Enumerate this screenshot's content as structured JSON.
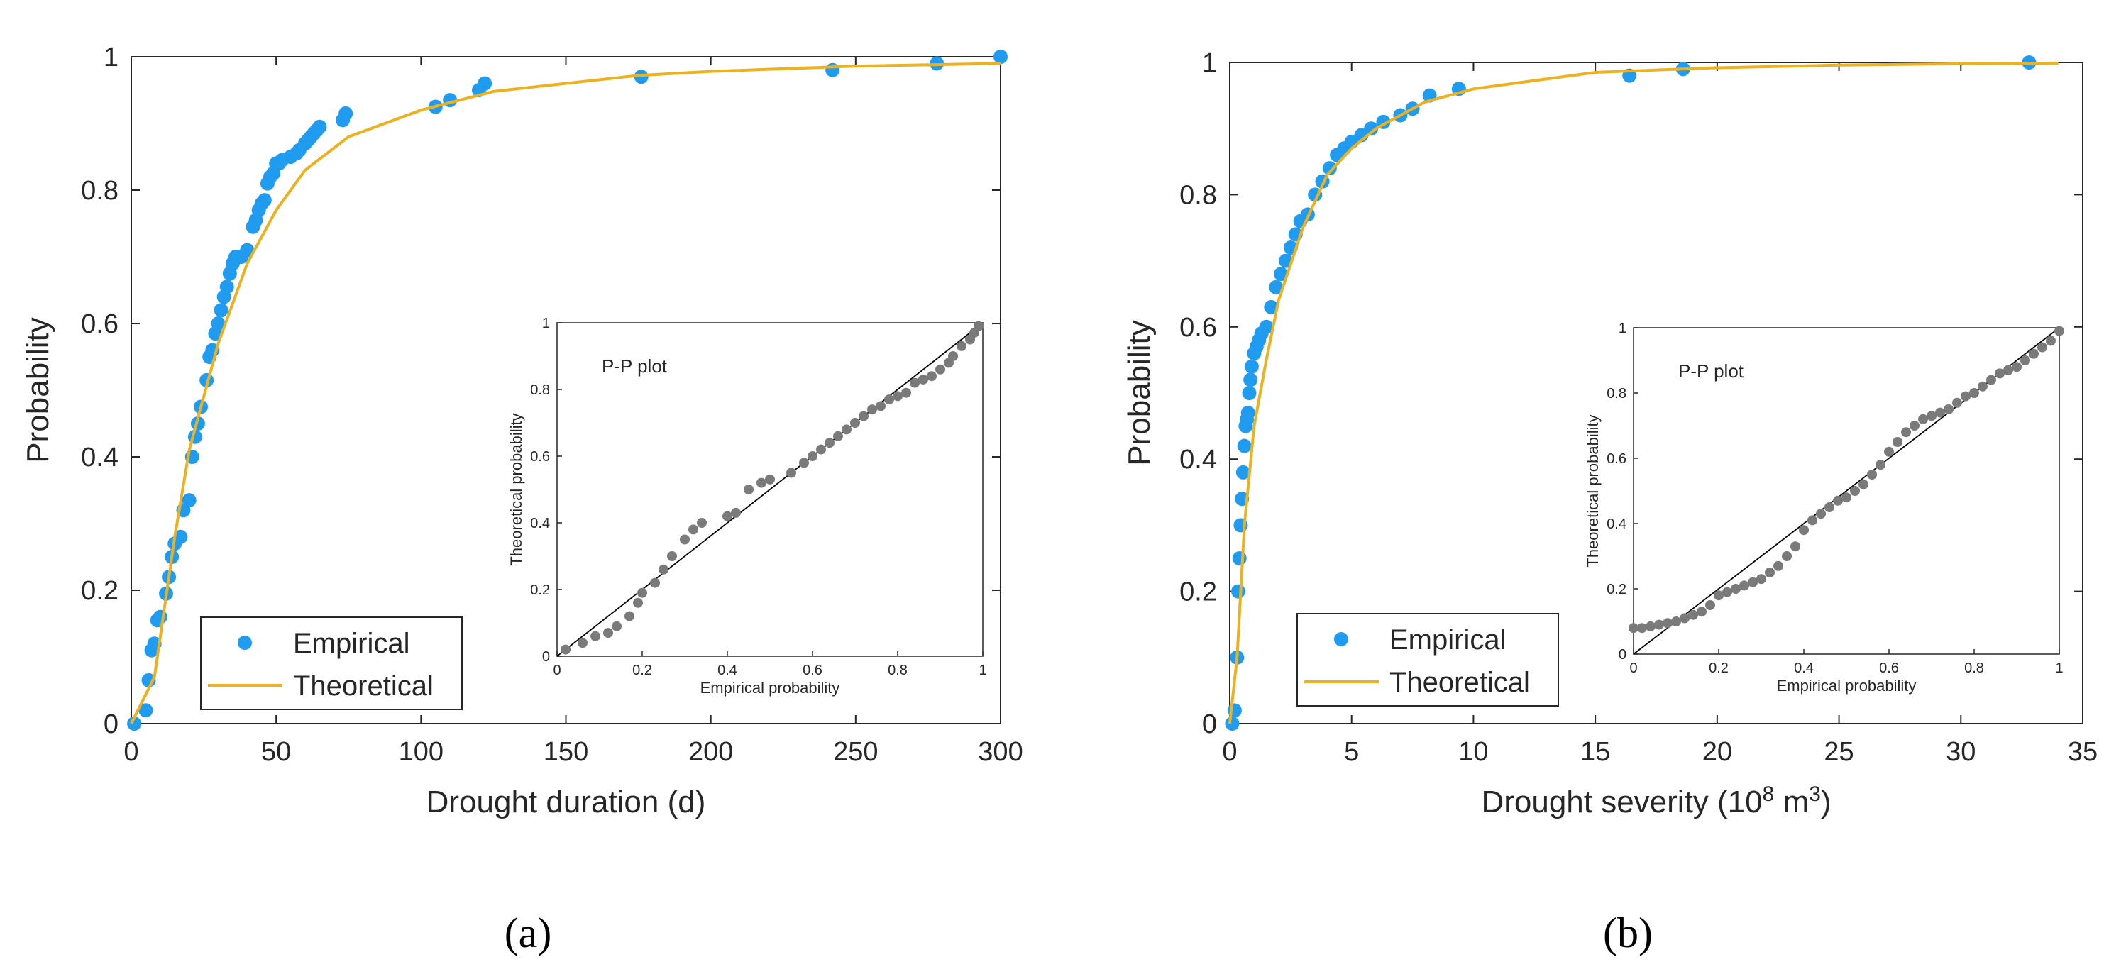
{
  "colors": {
    "empirical": "#1f9cf0",
    "theoretical": "#edb120",
    "pp_points": "#7a7a7a",
    "reference_line": "#000000",
    "axis": "#262626"
  },
  "legend": {
    "empirical": "Empirical",
    "theoretical": "Theoretical"
  },
  "inset_common": {
    "title": "P-P plot",
    "xlabel": "Empirical probability",
    "ylabel": "Theoretical probability"
  },
  "panel_labels": [
    "(a)",
    "(b)"
  ],
  "chart_data": [
    {
      "type": "scatter",
      "panel": "(a)",
      "xlabel": "Drought duration (d)",
      "ylabel": "Probability",
      "xlim": [
        0,
        300
      ],
      "ylim": [
        0,
        1
      ],
      "xticks": [
        0,
        50,
        100,
        150,
        200,
        250,
        300
      ],
      "yticks": [
        0,
        0.2,
        0.4,
        0.6,
        0.8,
        1
      ],
      "xtick_labels": [
        "0",
        "50",
        "100",
        "150",
        "200",
        "250",
        "300"
      ],
      "ytick_labels": [
        "0",
        "0.2",
        "0.4",
        "0.6",
        "0.8",
        "1"
      ],
      "legend_position": "bottom-left",
      "series": [
        {
          "name": "Empirical",
          "kind": "scatter",
          "x": [
            1,
            5,
            6,
            7,
            8,
            9,
            10,
            12,
            13,
            14,
            15,
            17,
            18,
            20,
            21,
            22,
            23,
            24,
            26,
            27,
            28,
            29,
            30,
            31,
            32,
            33,
            34,
            35,
            36,
            37,
            38,
            40,
            42,
            43,
            44,
            45,
            46,
            47,
            48,
            49,
            50,
            51,
            52,
            55,
            57,
            58,
            60,
            61,
            62,
            63,
            64,
            65,
            73,
            74,
            105,
            110,
            120,
            122,
            176,
            242,
            278,
            300
          ],
          "y": [
            0.0,
            0.02,
            0.065,
            0.11,
            0.12,
            0.155,
            0.16,
            0.195,
            0.22,
            0.25,
            0.27,
            0.28,
            0.32,
            0.335,
            0.4,
            0.43,
            0.45,
            0.475,
            0.515,
            0.55,
            0.56,
            0.585,
            0.6,
            0.62,
            0.64,
            0.655,
            0.675,
            0.69,
            0.7,
            0.7,
            0.7,
            0.71,
            0.745,
            0.755,
            0.77,
            0.78,
            0.785,
            0.81,
            0.82,
            0.825,
            0.84,
            0.84,
            0.845,
            0.85,
            0.855,
            0.86,
            0.87,
            0.875,
            0.88,
            0.885,
            0.89,
            0.895,
            0.905,
            0.915,
            0.925,
            0.935,
            0.95,
            0.96,
            0.97,
            0.98,
            0.99,
            1.0
          ]
        },
        {
          "name": "Theoretical",
          "kind": "line",
          "x": [
            0,
            8,
            15,
            20,
            30,
            40,
            50,
            60,
            75,
            100,
            125,
            150,
            175,
            200,
            250,
            300
          ],
          "y": [
            0.0,
            0.07,
            0.28,
            0.41,
            0.57,
            0.69,
            0.77,
            0.83,
            0.88,
            0.92,
            0.948,
            0.96,
            0.972,
            0.978,
            0.986,
            0.99
          ]
        }
      ],
      "inset": {
        "type": "scatter",
        "title": "P-P plot",
        "xlabel": "Empirical probability",
        "ylabel": "Theoretical probability",
        "xlim": [
          0,
          1
        ],
        "ylim": [
          0,
          1
        ],
        "xticks": [
          0,
          0.2,
          0.4,
          0.6,
          0.8,
          1
        ],
        "yticks": [
          0,
          0.2,
          0.4,
          0.6,
          0.8,
          1
        ],
        "xtick_labels": [
          "0",
          "0.2",
          "0.4",
          "0.6",
          "0.8",
          "1"
        ],
        "ytick_labels": [
          "0",
          "0.2",
          "0.4",
          "0.6",
          "0.8",
          "1"
        ],
        "reference_line": [
          [
            0,
            0
          ],
          [
            1,
            1
          ]
        ],
        "x": [
          0.02,
          0.06,
          0.09,
          0.12,
          0.14,
          0.17,
          0.19,
          0.2,
          0.23,
          0.25,
          0.27,
          0.3,
          0.32,
          0.34,
          0.4,
          0.42,
          0.45,
          0.48,
          0.5,
          0.55,
          0.58,
          0.6,
          0.62,
          0.64,
          0.66,
          0.68,
          0.7,
          0.72,
          0.74,
          0.76,
          0.78,
          0.8,
          0.82,
          0.84,
          0.86,
          0.88,
          0.9,
          0.92,
          0.93,
          0.95,
          0.97,
          0.98,
          0.99
        ],
        "y": [
          0.02,
          0.04,
          0.06,
          0.07,
          0.09,
          0.12,
          0.16,
          0.19,
          0.22,
          0.26,
          0.3,
          0.35,
          0.38,
          0.4,
          0.42,
          0.43,
          0.5,
          0.52,
          0.53,
          0.55,
          0.58,
          0.6,
          0.62,
          0.64,
          0.66,
          0.68,
          0.7,
          0.72,
          0.74,
          0.75,
          0.77,
          0.78,
          0.79,
          0.82,
          0.83,
          0.84,
          0.86,
          0.88,
          0.9,
          0.93,
          0.95,
          0.97,
          0.99
        ]
      }
    },
    {
      "type": "scatter",
      "panel": "(b)",
      "xlabel": "Drought severity (10",
      "xlabel_sup1": "8",
      "xlabel_mid": " m",
      "xlabel_sup2": "3",
      "xlabel_end": ")",
      "ylabel": "Probability",
      "xlim": [
        0,
        35
      ],
      "ylim": [
        0,
        1
      ],
      "xticks": [
        0,
        5,
        10,
        15,
        20,
        25,
        30,
        35
      ],
      "yticks": [
        0,
        0.2,
        0.4,
        0.6,
        0.8,
        1
      ],
      "xtick_labels": [
        "0",
        "5",
        "10",
        "15",
        "20",
        "25",
        "30",
        "35"
      ],
      "ytick_labels": [
        "0",
        "0.2",
        "0.4",
        "0.6",
        "0.8",
        "1"
      ],
      "legend_position": "bottom-left",
      "series": [
        {
          "name": "Empirical",
          "kind": "scatter",
          "x": [
            0.1,
            0.2,
            0.3,
            0.35,
            0.4,
            0.45,
            0.5,
            0.55,
            0.6,
            0.65,
            0.7,
            0.75,
            0.8,
            0.85,
            0.9,
            1.0,
            1.1,
            1.2,
            1.3,
            1.5,
            1.7,
            1.9,
            2.1,
            2.3,
            2.5,
            2.7,
            2.9,
            3.2,
            3.5,
            3.8,
            4.1,
            4.4,
            4.7,
            5.0,
            5.4,
            5.8,
            6.3,
            7.0,
            7.5,
            8.2,
            9.4,
            16.4,
            18.6,
            32.8
          ],
          "y": [
            0.0,
            0.02,
            0.1,
            0.2,
            0.25,
            0.3,
            0.34,
            0.38,
            0.42,
            0.45,
            0.46,
            0.47,
            0.5,
            0.52,
            0.54,
            0.56,
            0.57,
            0.58,
            0.59,
            0.6,
            0.63,
            0.66,
            0.68,
            0.7,
            0.72,
            0.74,
            0.76,
            0.77,
            0.8,
            0.82,
            0.84,
            0.86,
            0.87,
            0.88,
            0.89,
            0.9,
            0.91,
            0.92,
            0.93,
            0.95,
            0.96,
            0.98,
            0.99,
            1.0
          ]
        },
        {
          "name": "Theoretical",
          "kind": "line",
          "x": [
            0,
            0.3,
            0.6,
            1.0,
            1.5,
            2.0,
            3.0,
            4.0,
            5.0,
            6.0,
            8.0,
            10.0,
            15.0,
            20.0,
            25.0,
            30.0,
            34.0
          ],
          "y": [
            0.0,
            0.1,
            0.3,
            0.45,
            0.55,
            0.64,
            0.75,
            0.83,
            0.87,
            0.9,
            0.94,
            0.96,
            0.985,
            0.992,
            0.996,
            0.998,
            0.999
          ]
        }
      ],
      "inset": {
        "type": "scatter",
        "title": "P-P plot",
        "xlabel": "Empirical probability",
        "ylabel": "Theoretical probability",
        "xlim": [
          0,
          1
        ],
        "ylim": [
          0,
          1
        ],
        "xticks": [
          0,
          0.2,
          0.4,
          0.6,
          0.8,
          1
        ],
        "yticks": [
          0,
          0.2,
          0.4,
          0.6,
          0.8,
          1
        ],
        "xtick_labels": [
          "0",
          "0.2",
          "0.4",
          "0.6",
          "0.8",
          "1"
        ],
        "ytick_labels": [
          "0",
          "0.2",
          "0.4",
          "0.6",
          "0.8",
          "1"
        ],
        "reference_line": [
          [
            0,
            0
          ],
          [
            1,
            1
          ]
        ],
        "x": [
          0.0,
          0.02,
          0.04,
          0.06,
          0.08,
          0.1,
          0.12,
          0.14,
          0.16,
          0.18,
          0.2,
          0.22,
          0.24,
          0.26,
          0.28,
          0.3,
          0.32,
          0.34,
          0.36,
          0.38,
          0.4,
          0.42,
          0.44,
          0.46,
          0.48,
          0.5,
          0.52,
          0.54,
          0.56,
          0.58,
          0.6,
          0.62,
          0.64,
          0.66,
          0.68,
          0.7,
          0.72,
          0.74,
          0.76,
          0.78,
          0.8,
          0.82,
          0.84,
          0.86,
          0.88,
          0.9,
          0.92,
          0.94,
          0.96,
          0.98,
          1.0
        ],
        "y": [
          0.08,
          0.08,
          0.085,
          0.09,
          0.095,
          0.1,
          0.11,
          0.12,
          0.13,
          0.15,
          0.18,
          0.19,
          0.2,
          0.21,
          0.22,
          0.23,
          0.25,
          0.27,
          0.3,
          0.33,
          0.38,
          0.41,
          0.43,
          0.45,
          0.47,
          0.48,
          0.5,
          0.52,
          0.55,
          0.58,
          0.62,
          0.65,
          0.68,
          0.7,
          0.72,
          0.73,
          0.74,
          0.75,
          0.77,
          0.79,
          0.8,
          0.82,
          0.84,
          0.86,
          0.87,
          0.88,
          0.9,
          0.92,
          0.94,
          0.96,
          0.99
        ]
      }
    }
  ]
}
